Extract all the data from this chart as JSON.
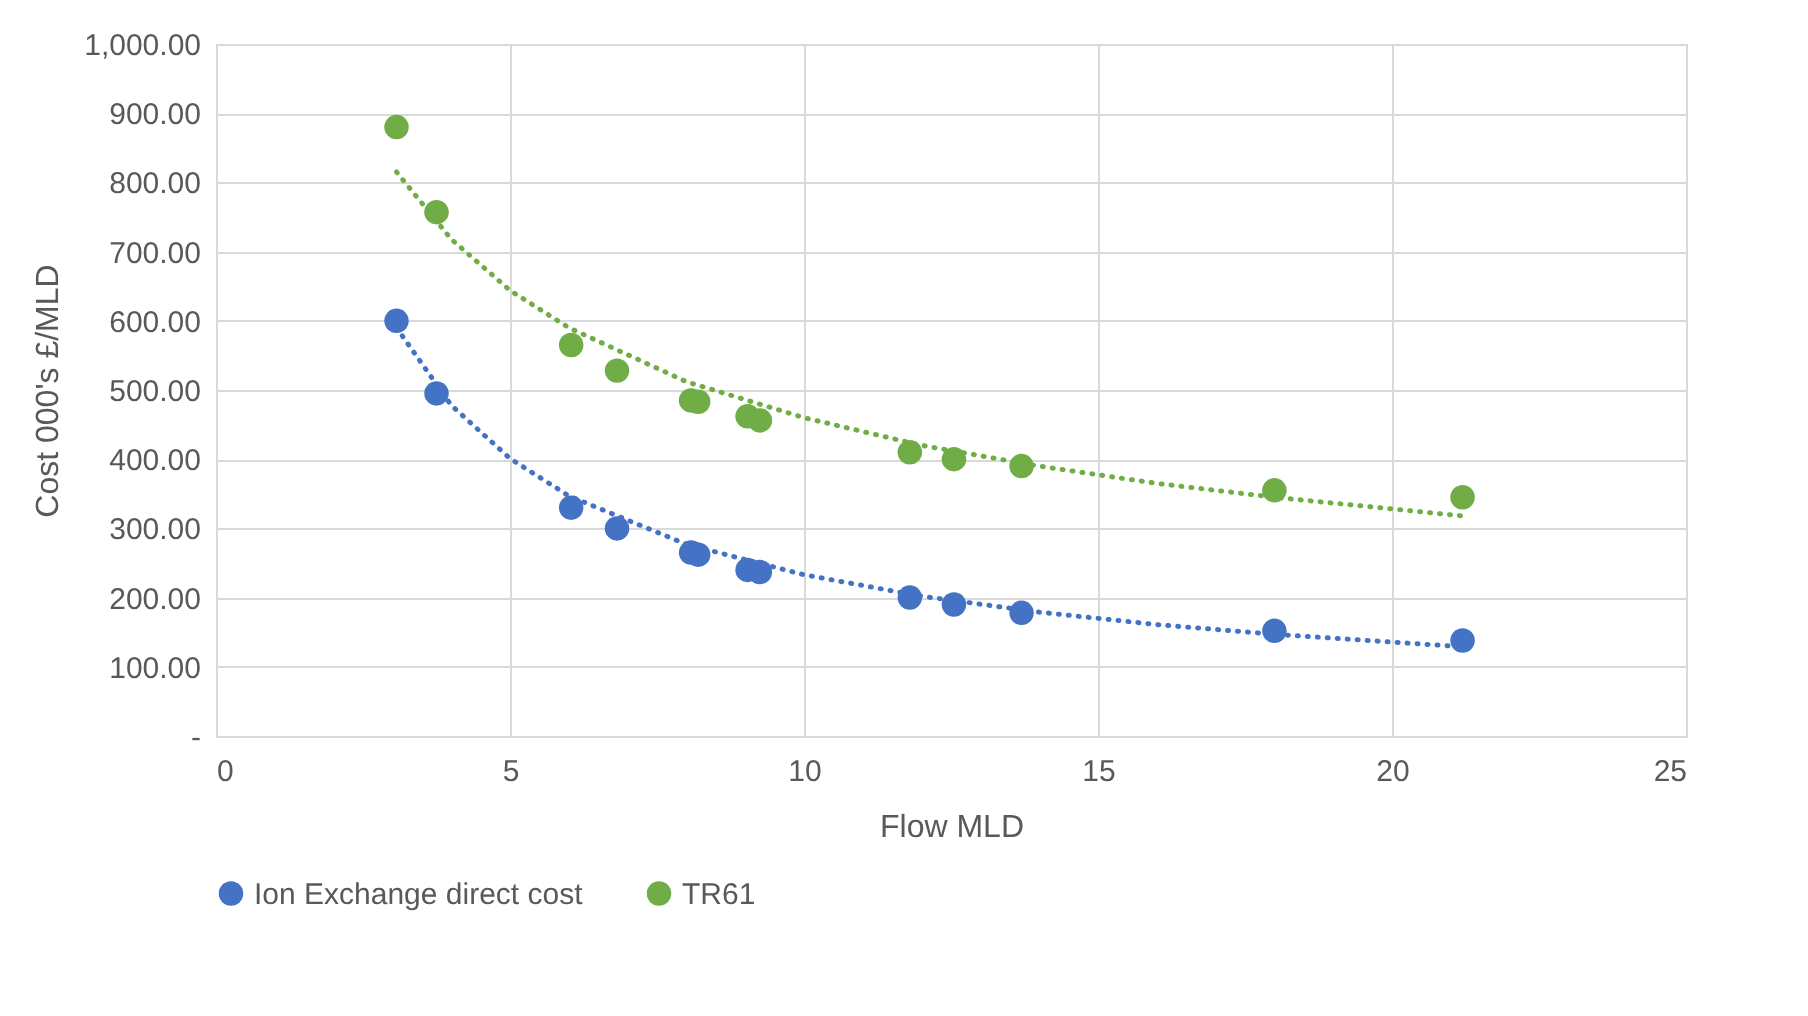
{
  "chart_data": {
    "type": "scatter",
    "xlabel": "Flow MLD",
    "ylabel": "Cost 000's £/MLD",
    "xlim": [
      0,
      25
    ],
    "xticks": [
      0,
      5,
      10,
      15,
      20,
      25
    ],
    "ylim": [
      0,
      1000
    ],
    "yticks": [
      {
        "value": 0,
        "label": "-"
      },
      {
        "value": 100,
        "label": "100.00"
      },
      {
        "value": 200,
        "label": "200.00"
      },
      {
        "value": 300,
        "label": "300.00"
      },
      {
        "value": 400,
        "label": "400.00"
      },
      {
        "value": 500,
        "label": "500.00"
      },
      {
        "value": 600,
        "label": "600.00"
      },
      {
        "value": 700,
        "label": "700.00"
      },
      {
        "value": 800,
        "label": "800.00"
      },
      {
        "value": 900,
        "label": "900.00"
      },
      {
        "value": 1000,
        "label": "1,000.00"
      }
    ],
    "grid": true,
    "legend": "bottom",
    "marker": "circle",
    "x": [
      3.07,
      3.75,
      6.04,
      6.82,
      8.08,
      8.2,
      9.04,
      9.25,
      11.8,
      12.55,
      13.7,
      18.0,
      21.2
    ],
    "series": [
      {
        "name": "Ion Exchange direct cost",
        "color": "#4472c4",
        "values": [
          600,
          495,
          330,
          300,
          265,
          262,
          240,
          237,
          200,
          190,
          178,
          152,
          138
        ]
      },
      {
        "name": "TR61",
        "color": "#70ad47",
        "values": [
          880,
          757,
          565,
          528,
          485,
          483,
          462,
          456,
          410,
          400,
          390,
          355,
          345
        ]
      },
      {
        "type": "line",
        "line_style": "dotted",
        "marker": "none",
        "color": "#4472c4",
        "x": [
          3.07,
          4,
          5,
          6,
          8,
          10,
          12,
          14,
          16,
          18,
          21.2
        ],
        "values": [
          590,
          478,
          401,
          347,
          277,
          233,
          202,
          179,
          161,
          147,
          129
        ]
      },
      {
        "type": "line",
        "line_style": "dotted",
        "marker": "none",
        "color": "#70ad47",
        "x": [
          3.07,
          4,
          5,
          6,
          8,
          10,
          12,
          14,
          16,
          18,
          21.2
        ],
        "values": [
          815,
          718,
          644,
          590,
          512,
          460,
          420,
          390,
          365,
          345,
          318
        ]
      }
    ]
  }
}
